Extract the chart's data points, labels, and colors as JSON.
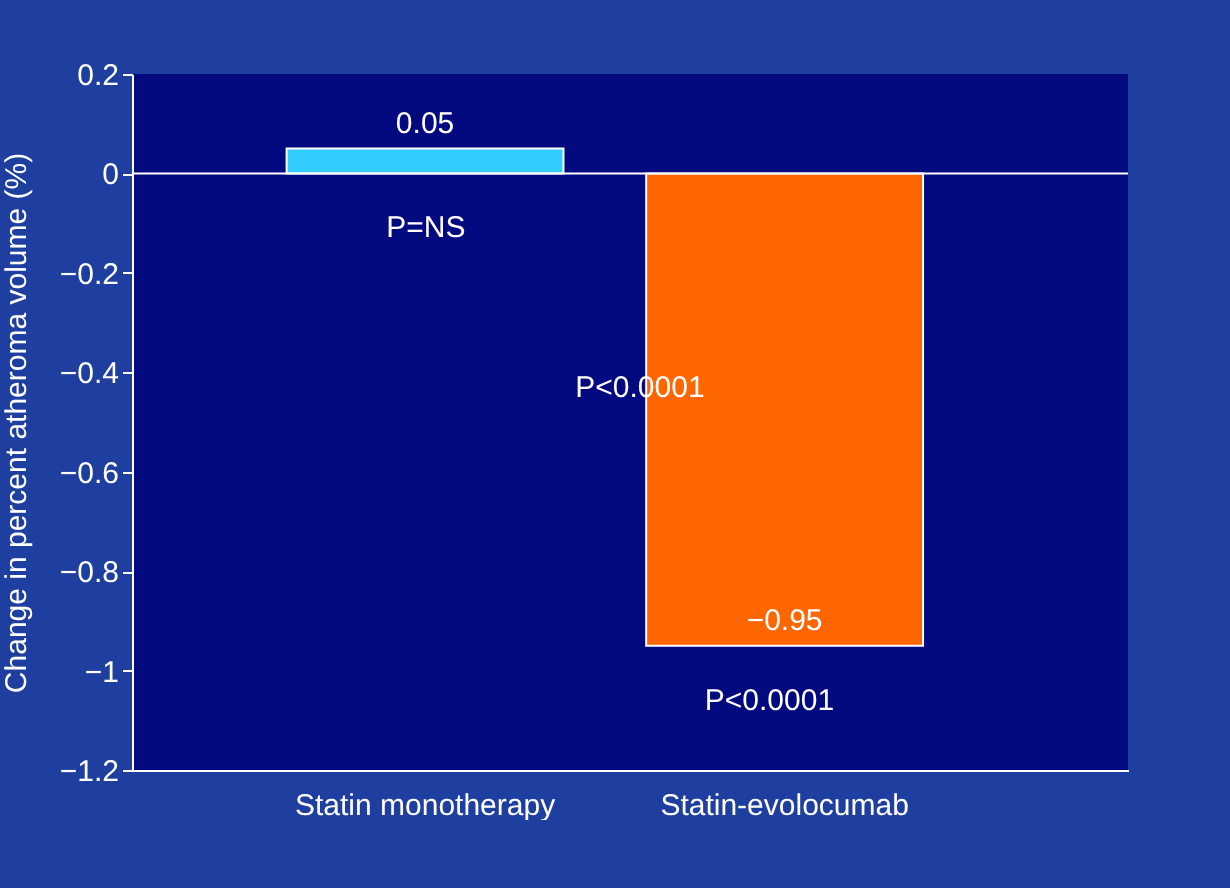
{
  "chart_data": {
    "type": "bar",
    "ylabel": "Change in percent atheroma volume (%)",
    "categories": [
      "Statin monotherapy",
      "Statin-evolocumab"
    ],
    "values": [
      0.05,
      -0.95
    ],
    "colors": [
      "#33ccff",
      "#ff6600"
    ],
    "value_labels": [
      "0.05",
      "−0.95"
    ],
    "ylim": [
      -1.2,
      0.2
    ],
    "yticks": [
      {
        "value": 0.2,
        "label": "0.2"
      },
      {
        "value": 0,
        "label": "0"
      },
      {
        "value": -0.2,
        "label": "−0.2"
      },
      {
        "value": -0.4,
        "label": "−0.4"
      },
      {
        "value": -0.6,
        "label": "−0.6"
      },
      {
        "value": -0.8,
        "label": "−0.8"
      },
      {
        "value": -1,
        "label": "−1"
      },
      {
        "value": -1.2,
        "label": "−1.2"
      }
    ],
    "annotations": [
      "P=NS",
      "P<0.0001",
      "P<0.0001"
    ],
    "ref_lines": [
      {
        "axis": "y",
        "value": 0,
        "color": "#ffffff"
      }
    ],
    "grid": false,
    "legend": false
  }
}
